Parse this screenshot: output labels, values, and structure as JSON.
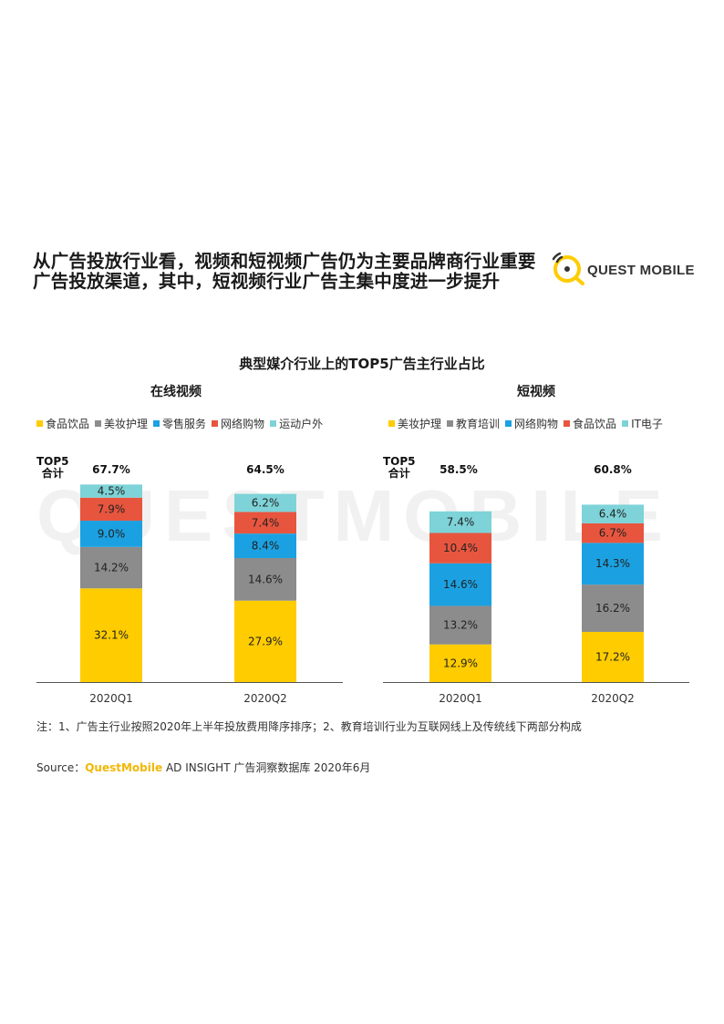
{
  "headline": {
    "line1": "从广告投放行业看，视频和短视频广告仍为主要品牌商行业重要",
    "line2": "广告投放渠道，其中，短视频行业广告主集中度进一步提升"
  },
  "logo": {
    "text": "QUEST MOBILE"
  },
  "watermark": "QUESTMOBILE",
  "chart_title": "典型媒介行业上的TOP5广告主行业占比",
  "total_label": [
    "TOP5",
    "合计"
  ],
  "colors": {
    "yellow": "#FFCC00",
    "gray": "#8C8C8C",
    "blue": "#1BA1E2",
    "red": "#E8553E",
    "cyan": "#7DD3D8"
  },
  "chart_data": [
    {
      "type": "bar",
      "stacked": true,
      "title": "在线视频",
      "categories": [
        "2020Q1",
        "2020Q2"
      ],
      "totals": [
        "67.7%",
        "64.5%"
      ],
      "series": [
        {
          "name": "食品饮品",
          "color": "#FFCC00",
          "values": [
            32.1,
            27.9
          ]
        },
        {
          "name": "美妆护理",
          "color": "#8C8C8C",
          "values": [
            14.2,
            14.6
          ]
        },
        {
          "name": "零售服务",
          "color": "#1BA1E2",
          "values": [
            9.0,
            8.4
          ]
        },
        {
          "name": "网络购物",
          "color": "#E8553E",
          "values": [
            7.9,
            7.4
          ]
        },
        {
          "name": "运动户外",
          "color": "#7DD3D8",
          "values": [
            4.5,
            6.2
          ]
        }
      ],
      "labels": [
        [
          "32.1%",
          "14.2%",
          "9.0%",
          "7.9%",
          "4.5%"
        ],
        [
          "27.9%",
          "14.6%",
          "8.4%",
          "7.4%",
          "6.2%"
        ]
      ],
      "legend": "top"
    },
    {
      "type": "bar",
      "stacked": true,
      "title": "短视频",
      "categories": [
        "2020Q1",
        "2020Q2"
      ],
      "totals": [
        "58.5%",
        "60.8%"
      ],
      "series": [
        {
          "name": "美妆护理",
          "color": "#FFCC00",
          "values": [
            12.9,
            17.2
          ]
        },
        {
          "name": "教育培训",
          "color": "#8C8C8C",
          "values": [
            13.2,
            16.2
          ]
        },
        {
          "name": "网络购物",
          "color": "#1BA1E2",
          "values": [
            14.6,
            14.3
          ]
        },
        {
          "name": "食品饮品",
          "color": "#E8553E",
          "values": [
            10.4,
            6.7
          ]
        },
        {
          "name": "IT电子",
          "color": "#7DD3D8",
          "values": [
            7.4,
            6.4
          ]
        }
      ],
      "labels": [
        [
          "12.9%",
          "13.2%",
          "14.6%",
          "10.4%",
          "7.4%"
        ],
        [
          "17.2%",
          "16.2%",
          "14.3%",
          "6.7%",
          "6.4%"
        ]
      ],
      "legend": "top"
    }
  ],
  "note": "注：1、广告主行业按照2020年上半年投放费用降序排序；2、教育培训行业为互联网线上及传统线下两部分构成",
  "source": {
    "prefix": "Source：",
    "brand": "QuestMobile",
    "rest": " AD INSIGHT 广告洞察数据库 2020年6月"
  }
}
